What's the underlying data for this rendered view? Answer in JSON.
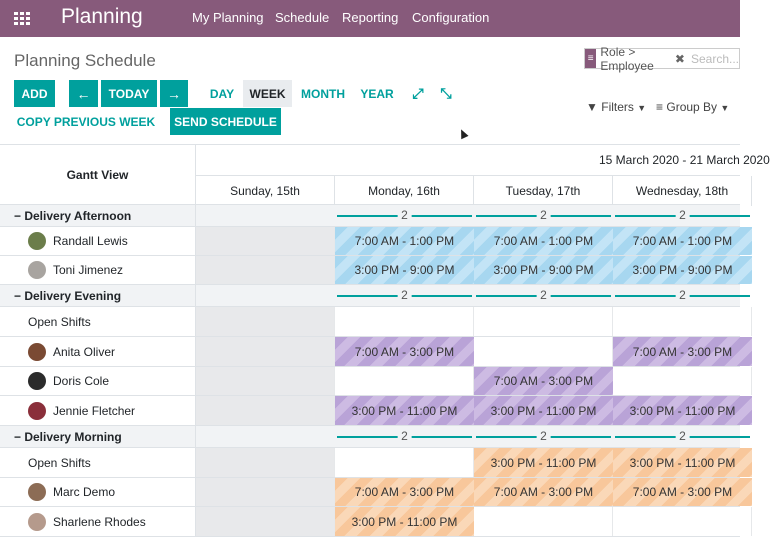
{
  "navbar": {
    "app_title": "Planning",
    "menu": [
      "My Planning",
      "Schedule",
      "Reporting",
      "Configuration"
    ]
  },
  "control_panel": {
    "page_title": "Planning Schedule",
    "buttons": {
      "add": "ADD",
      "prev": "←",
      "today": "TODAY",
      "next": "→",
      "copy_previous_week": "COPY PREVIOUS WEEK",
      "send_schedule": "SEND SCHEDULE"
    },
    "scales": [
      "DAY",
      "WEEK",
      "MONTH",
      "YEAR"
    ],
    "active_scale": "WEEK",
    "expand_icon": "⤢",
    "collapse_icon": "⤡",
    "search": {
      "facet": "Role > Employee",
      "placeholder": "Search..."
    },
    "filters_label": "Filters",
    "group_by_label": "Group By"
  },
  "gantt": {
    "view_title": "Gantt View",
    "date_range": "15 March 2020 - 21 March 2020",
    "days": [
      "Sunday, 15th",
      "Monday, 16th",
      "Tuesday, 17th",
      "Wednesday, 18th"
    ],
    "rows": [
      {
        "type": "group",
        "label": "− Delivery Afternoon",
        "counts": [
          "",
          "2",
          "2",
          "2"
        ]
      },
      {
        "type": "person",
        "label": "Randall Lewis",
        "avatar_color": "#6b7d4a",
        "shifts": [
          "",
          "7:00 AM - 1:00 PM",
          "7:00 AM - 1:00 PM",
          "7:00 AM - 1:00 PM"
        ],
        "color": "blue"
      },
      {
        "type": "person",
        "label": "Toni Jimenez",
        "avatar_color": "#a8a4a0",
        "shifts": [
          "",
          "3:00 PM - 9:00 PM",
          "3:00 PM - 9:00 PM",
          "3:00 PM - 9:00 PM"
        ],
        "color": "blue"
      },
      {
        "type": "group",
        "label": "− Delivery Evening",
        "counts": [
          "",
          "2",
          "2",
          "2"
        ]
      },
      {
        "type": "open",
        "label": "Open Shifts",
        "shifts": [
          "",
          "",
          "",
          ""
        ],
        "color": "purple"
      },
      {
        "type": "person",
        "label": "Anita Oliver",
        "avatar_color": "#7a4a33",
        "shifts": [
          "",
          "7:00 AM - 3:00 PM",
          "",
          "7:00 AM - 3:00 PM"
        ],
        "color": "purple"
      },
      {
        "type": "person",
        "label": "Doris Cole",
        "avatar_color": "#2b2b2b",
        "shifts": [
          "",
          "",
          "7:00 AM - 3:00 PM",
          ""
        ],
        "color": "purple"
      },
      {
        "type": "person",
        "label": "Jennie Fletcher",
        "avatar_color": "#8a2f3a",
        "shifts": [
          "",
          "3:00 PM - 11:00 PM",
          "3:00 PM - 11:00 PM",
          "3:00 PM - 11:00 PM"
        ],
        "color": "purple"
      },
      {
        "type": "group",
        "label": "− Delivery Morning",
        "counts": [
          "",
          "2",
          "2",
          "2"
        ]
      },
      {
        "type": "open",
        "label": "Open Shifts",
        "shifts": [
          "",
          "",
          "3:00 PM - 11:00 PM",
          "3:00 PM - 11:00 PM"
        ],
        "color": "orange"
      },
      {
        "type": "person",
        "label": "Marc Demo",
        "avatar_color": "#8c6c55",
        "shifts": [
          "",
          "7:00 AM - 3:00 PM",
          "7:00 AM - 3:00 PM",
          "7:00 AM - 3:00 PM"
        ],
        "color": "orange"
      },
      {
        "type": "person",
        "label": "Sharlene Rhodes",
        "avatar_color": "#b59a8c",
        "shifts": [
          "",
          "3:00 PM - 11:00 PM",
          "",
          ""
        ],
        "color": "orange"
      }
    ]
  }
}
